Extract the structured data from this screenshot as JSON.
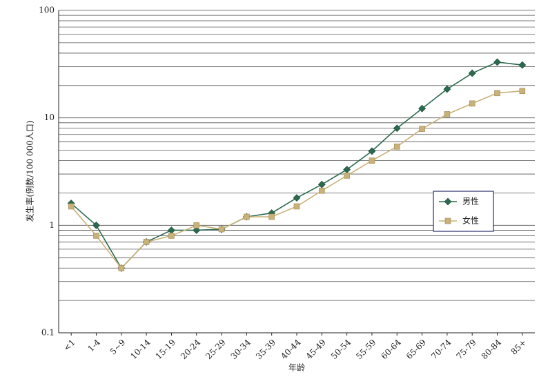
{
  "chart_data": {
    "type": "line",
    "x_label": "年龄",
    "y_label": "发生率(例数/100 000人口)",
    "categories": [
      "<1",
      "1-4",
      "5~9",
      "10-14",
      "15-19",
      "20-24",
      "25-29",
      "30-34",
      "35-39",
      "40-44",
      "45-49",
      "50-54",
      "55-59",
      "60-64",
      "65-69",
      "70-74",
      "75-79",
      "80-84",
      "85+"
    ],
    "series": [
      {
        "name": "男性",
        "color": "#2b6a4e",
        "marker": "diamond",
        "values": [
          1.6,
          1.0,
          0.4,
          0.7,
          0.9,
          0.9,
          0.92,
          1.2,
          1.3,
          1.8,
          2.4,
          3.3,
          4.9,
          8.0,
          12.2,
          18.5,
          26,
          33,
          31
        ]
      },
      {
        "name": "女性",
        "color": "#c9b27a",
        "marker": "square",
        "values": [
          1.5,
          0.8,
          0.4,
          0.7,
          0.8,
          1.0,
          0.92,
          1.2,
          1.2,
          1.5,
          2.1,
          2.9,
          4.0,
          5.4,
          7.9,
          10.8,
          13.6,
          17,
          17.8
        ]
      }
    ],
    "log_y": true,
    "ylim": [
      0.1,
      100
    ],
    "yticks": [
      0.1,
      1,
      10,
      100
    ],
    "yminorticks": [
      0.2,
      0.3,
      0.4,
      0.5,
      0.6,
      0.7,
      0.8,
      0.9,
      2,
      3,
      4,
      5,
      6,
      7,
      8,
      9,
      20,
      30,
      40,
      50,
      60,
      70,
      80,
      90
    ],
    "grid": true,
    "legend": "right"
  }
}
